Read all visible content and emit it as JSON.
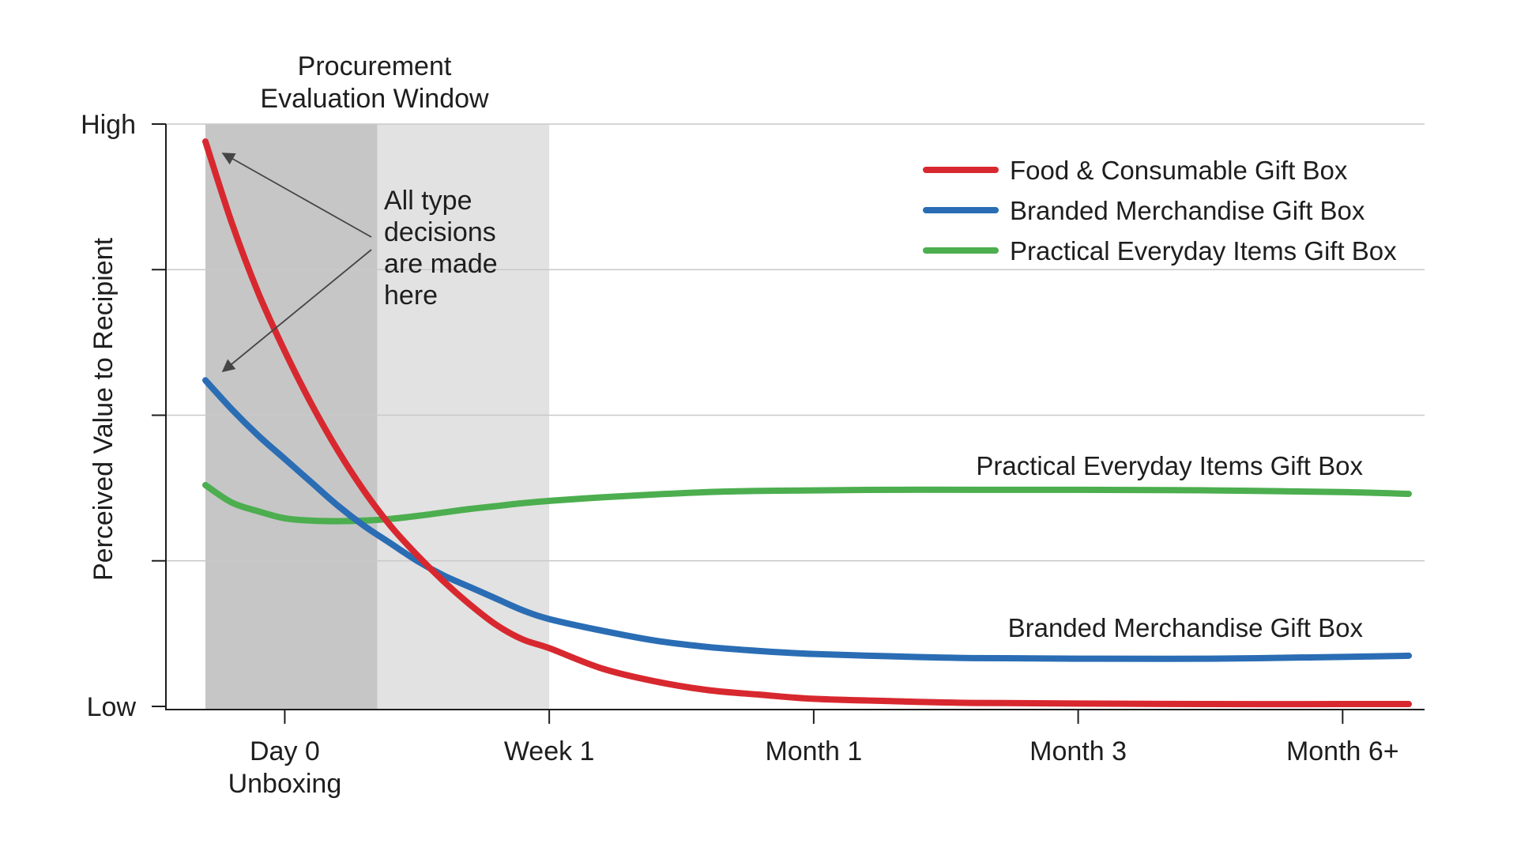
{
  "chart_data": {
    "type": "line",
    "title": "",
    "xlabel": "",
    "ylabel": "Perceived Value to Recipient",
    "x_ticks": [
      {
        "lines": [
          "Day 0",
          "Unboxing"
        ]
      },
      {
        "lines": [
          "Week 1"
        ]
      },
      {
        "lines": [
          "Month 1"
        ]
      },
      {
        "lines": [
          "Month 3"
        ]
      },
      {
        "lines": [
          "Month 6+"
        ]
      }
    ],
    "xlim": [
      -0.3,
      4.25
    ],
    "x_tick_positions": [
      0,
      1,
      2,
      3,
      4
    ],
    "y_ticks": [
      {
        "value": 0,
        "label": "Low"
      },
      {
        "value": 25,
        "label": ""
      },
      {
        "value": 50,
        "label": ""
      },
      {
        "value": 75,
        "label": ""
      },
      {
        "value": 100,
        "label": "High"
      }
    ],
    "ylim": [
      0,
      100
    ],
    "grid": true,
    "legend_position": "top-right",
    "shaded_region": {
      "label_lines": [
        "Procurement",
        "Evaluation Window"
      ],
      "x_start": -0.3,
      "x_split": 0.35,
      "x_end": 1.0,
      "colors": [
        "#c6c6c6",
        "#e2e2e2"
      ]
    },
    "annotation": {
      "lines": [
        "All type",
        "decisions",
        "are made",
        "here"
      ]
    },
    "series": [
      {
        "name": "Food & Consumable Gift Box",
        "color": "#d8282f",
        "x": [
          -0.3,
          -0.2,
          -0.1,
          0.0,
          0.1,
          0.2,
          0.3,
          0.4,
          0.5,
          0.6,
          0.7,
          0.8,
          0.9,
          1.0,
          1.2,
          1.4,
          1.6,
          1.8,
          2.0,
          2.3,
          2.6,
          3.0,
          3.5,
          4.0,
          4.25
        ],
        "y": [
          97,
          83,
          71,
          61,
          52,
          44,
          37,
          31,
          26,
          21.5,
          17.5,
          14,
          11.5,
          10,
          6.5,
          4.3,
          2.8,
          2,
          1.3,
          0.9,
          0.6,
          0.5,
          0.4,
          0.4,
          0.4
        ]
      },
      {
        "name": "Branded Merchandise Gift Box",
        "color": "#2a6db4",
        "x": [
          -0.3,
          -0.2,
          -0.1,
          0.0,
          0.1,
          0.2,
          0.3,
          0.4,
          0.5,
          0.6,
          0.7,
          0.8,
          0.9,
          1.0,
          1.2,
          1.4,
          1.6,
          1.8,
          2.0,
          2.3,
          2.6,
          3.0,
          3.5,
          4.0,
          4.25
        ],
        "y": [
          56,
          51,
          46.5,
          42.5,
          38.5,
          34.5,
          31,
          28,
          25,
          22.5,
          20.5,
          18.5,
          16.5,
          15,
          13,
          11.3,
          10.2,
          9.5,
          9,
          8.6,
          8.3,
          8.2,
          8.2,
          8.5,
          8.7
        ]
      },
      {
        "name": "Practical Everyday Items Gift Box",
        "color": "#4cae4f",
        "x": [
          -0.3,
          -0.2,
          -0.1,
          0.0,
          0.1,
          0.2,
          0.3,
          0.4,
          0.5,
          0.6,
          0.7,
          0.8,
          0.9,
          1.0,
          1.2,
          1.4,
          1.6,
          1.8,
          2.0,
          2.3,
          2.6,
          3.0,
          3.5,
          4.0,
          4.25
        ],
        "y": [
          38,
          35,
          33.5,
          32.3,
          31.9,
          31.8,
          31.9,
          32.2,
          32.7,
          33.3,
          33.9,
          34.4,
          34.9,
          35.3,
          35.9,
          36.4,
          36.8,
          37.0,
          37.1,
          37.2,
          37.2,
          37.2,
          37.1,
          36.8,
          36.5
        ]
      }
    ],
    "direct_labels": [
      {
        "series": "Practical Everyday Items Gift Box",
        "text": "Practical Everyday Items Gift Box"
      },
      {
        "series": "Branded Merchandise Gift Box",
        "text": "Branded Merchandise Gift Box"
      }
    ]
  }
}
